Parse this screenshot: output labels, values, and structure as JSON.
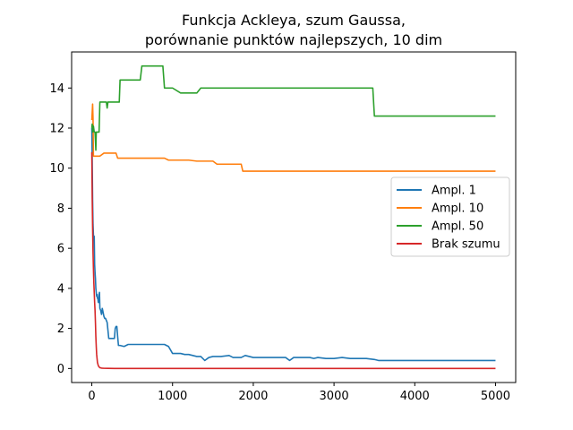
{
  "chart_data": {
    "type": "line",
    "title_line1": "Funkcja Ackleya, szum Gaussa,",
    "title_line2": "porównanie punktów najlepszych, 10 dim",
    "xlabel": "",
    "ylabel": "",
    "xlim": [
      -250,
      5250
    ],
    "ylim": [
      -0.7,
      15.8
    ],
    "xticks": [
      0,
      1000,
      2000,
      3000,
      4000,
      5000
    ],
    "yticks": [
      0,
      2,
      4,
      6,
      8,
      10,
      12,
      14
    ],
    "grid": false,
    "legend_position": "right",
    "series": [
      {
        "name": "Ampl. 1",
        "color": "#1f77b4",
        "x": [
          0,
          5,
          10,
          15,
          20,
          25,
          30,
          35,
          40,
          45,
          50,
          55,
          60,
          65,
          70,
          75,
          80,
          85,
          90,
          95,
          100,
          110,
          120,
          130,
          150,
          160,
          170,
          180,
          190,
          200,
          210,
          220,
          230,
          240,
          250,
          280,
          290,
          300,
          310,
          320,
          330,
          350,
          400,
          450,
          500,
          550,
          600,
          700,
          800,
          900,
          950,
          1000,
          1100,
          1150,
          1200,
          1250,
          1300,
          1350,
          1400,
          1450,
          1500,
          1600,
          1700,
          1750,
          1800,
          1850,
          1900,
          2000,
          2200,
          2400,
          2450,
          2500,
          2600,
          2700,
          2750,
          2800,
          2900,
          3000,
          3100,
          3200,
          3400,
          3500,
          3550,
          4000,
          4500,
          5000
        ],
        "y": [
          12.0,
          10.4,
          8.4,
          7.2,
          6.7,
          6.4,
          6.6,
          5.2,
          4.8,
          4.5,
          4.0,
          3.8,
          3.6,
          3.7,
          3.5,
          3.5,
          3.3,
          3.3,
          3.7,
          3.8,
          3.0,
          2.9,
          2.7,
          3.0,
          2.6,
          2.5,
          2.5,
          2.4,
          2.3,
          1.9,
          1.5,
          1.5,
          1.5,
          1.5,
          1.5,
          1.5,
          2.0,
          2.1,
          2.1,
          1.6,
          1.15,
          1.15,
          1.1,
          1.2,
          1.2,
          1.2,
          1.2,
          1.2,
          1.2,
          1.2,
          1.1,
          0.75,
          0.75,
          0.7,
          0.7,
          0.65,
          0.6,
          0.6,
          0.4,
          0.55,
          0.6,
          0.6,
          0.65,
          0.55,
          0.55,
          0.55,
          0.65,
          0.55,
          0.55,
          0.55,
          0.4,
          0.55,
          0.55,
          0.55,
          0.5,
          0.55,
          0.5,
          0.5,
          0.55,
          0.5,
          0.5,
          0.45,
          0.4,
          0.4,
          0.4,
          0.4
        ]
      },
      {
        "name": "Ampl. 10",
        "color": "#ff7f0e",
        "x": [
          0,
          5,
          10,
          15,
          20,
          25,
          30,
          40,
          60,
          100,
          150,
          200,
          250,
          300,
          320,
          350,
          500,
          600,
          700,
          900,
          950,
          1000,
          1200,
          1300,
          1400,
          1500,
          1550,
          1600,
          1700,
          1800,
          1850,
          1870,
          1900,
          2500,
          3000,
          4000,
          5000
        ],
        "y": [
          12.4,
          12.8,
          13.2,
          12.5,
          10.6,
          10.6,
          10.6,
          10.6,
          10.6,
          10.6,
          10.75,
          10.75,
          10.75,
          10.75,
          10.5,
          10.5,
          10.5,
          10.5,
          10.5,
          10.5,
          10.4,
          10.4,
          10.4,
          10.35,
          10.35,
          10.35,
          10.2,
          10.2,
          10.2,
          10.2,
          10.2,
          9.85,
          9.85,
          9.85,
          9.85,
          9.85,
          9.85
        ]
      },
      {
        "name": "Ampl. 50",
        "color": "#2ca02c",
        "x": [
          0,
          5,
          10,
          20,
          30,
          40,
          50,
          55,
          60,
          70,
          80,
          90,
          100,
          110,
          120,
          150,
          180,
          190,
          200,
          210,
          250,
          300,
          340,
          350,
          400,
          500,
          600,
          620,
          700,
          800,
          880,
          900,
          1000,
          1100,
          1200,
          1300,
          1350,
          1400,
          2000,
          3000,
          3480,
          3500,
          4000,
          5000
        ],
        "y": [
          12.0,
          12.2,
          11.8,
          12.1,
          11.8,
          11.8,
          10.9,
          11.8,
          11.8,
          11.8,
          11.8,
          11.8,
          13.3,
          13.3,
          13.3,
          13.3,
          13.3,
          13.0,
          13.3,
          13.3,
          13.3,
          13.3,
          13.3,
          14.4,
          14.4,
          14.4,
          14.4,
          15.1,
          15.1,
          15.1,
          15.1,
          14.0,
          14.0,
          13.75,
          13.75,
          13.75,
          14.0,
          14.0,
          14.0,
          14.0,
          14.0,
          12.6,
          12.6,
          12.6
        ]
      },
      {
        "name": "Brak szumu",
        "color": "#d62728",
        "x": [
          0,
          5,
          10,
          15,
          20,
          25,
          30,
          35,
          40,
          45,
          50,
          55,
          60,
          65,
          70,
          80,
          90,
          100,
          120,
          150,
          200,
          300,
          500,
          1000,
          2000,
          3000,
          4000,
          5000
        ],
        "y": [
          10.8,
          8.5,
          7.0,
          5.8,
          5.0,
          4.3,
          3.8,
          3.3,
          2.9,
          2.3,
          1.6,
          1.1,
          0.7,
          0.5,
          0.3,
          0.15,
          0.08,
          0.04,
          0.02,
          0.01,
          0.005,
          0.003,
          0.002,
          0.001,
          0.0005,
          0.0003,
          0.0002,
          0.0001
        ]
      }
    ]
  }
}
